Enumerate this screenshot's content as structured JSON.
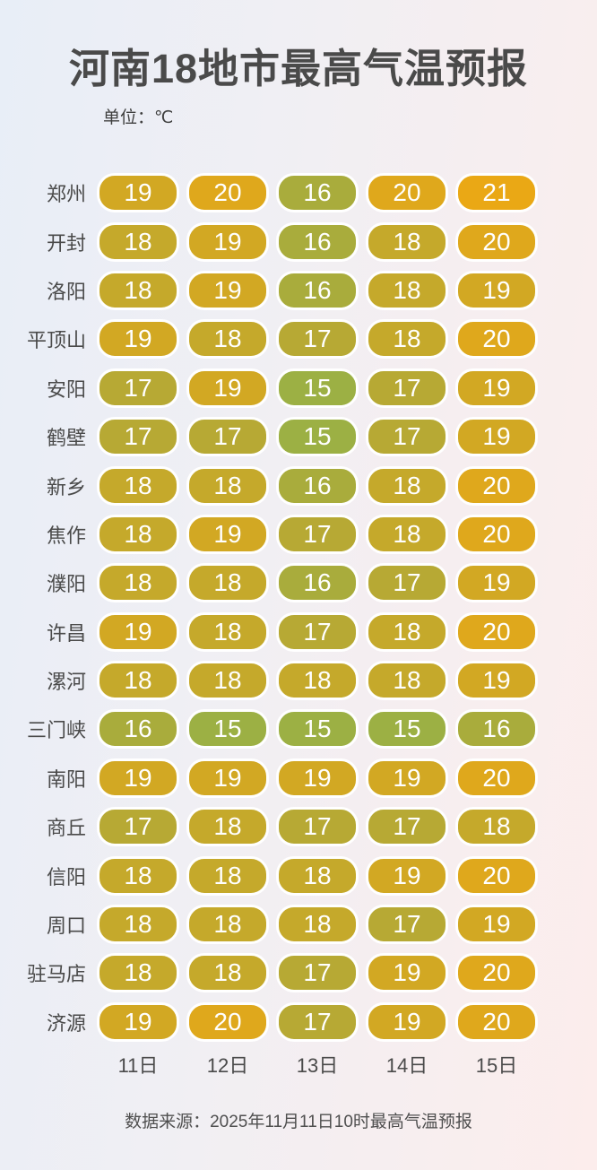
{
  "title": "河南18地市最高气温预报",
  "unit_label": "单位：℃",
  "footer": "数据来源：2025年11月11日10时最高气温预报",
  "chart_data": {
    "type": "heatmap",
    "title": "河南18地市最高气温预报",
    "unit": "℃",
    "x": [
      "11日",
      "12日",
      "13日",
      "14日",
      "15日"
    ],
    "rows": [
      {
        "name": "郑州",
        "values": [
          19,
          20,
          16,
          20,
          21
        ]
      },
      {
        "name": "开封",
        "values": [
          18,
          19,
          16,
          18,
          20
        ]
      },
      {
        "name": "洛阳",
        "values": [
          18,
          19,
          16,
          18,
          19
        ]
      },
      {
        "name": "平顶山",
        "values": [
          19,
          18,
          17,
          18,
          20
        ]
      },
      {
        "name": "安阳",
        "values": [
          17,
          19,
          15,
          17,
          19
        ]
      },
      {
        "name": "鹤壁",
        "values": [
          17,
          17,
          15,
          17,
          19
        ]
      },
      {
        "name": "新乡",
        "values": [
          18,
          18,
          16,
          18,
          20
        ]
      },
      {
        "name": "焦作",
        "values": [
          18,
          19,
          17,
          18,
          20
        ]
      },
      {
        "name": "濮阳",
        "values": [
          18,
          18,
          16,
          17,
          19
        ]
      },
      {
        "name": "许昌",
        "values": [
          19,
          18,
          17,
          18,
          20
        ]
      },
      {
        "name": "漯河",
        "values": [
          18,
          18,
          18,
          18,
          19
        ]
      },
      {
        "name": "三门峡",
        "values": [
          16,
          15,
          15,
          15,
          16
        ]
      },
      {
        "name": "南阳",
        "values": [
          19,
          19,
          19,
          19,
          20
        ]
      },
      {
        "name": "商丘",
        "values": [
          17,
          18,
          17,
          17,
          18
        ]
      },
      {
        "name": "信阳",
        "values": [
          18,
          18,
          18,
          19,
          20
        ]
      },
      {
        "name": "周口",
        "values": [
          18,
          18,
          18,
          17,
          19
        ]
      },
      {
        "name": "驻马店",
        "values": [
          18,
          18,
          17,
          19,
          20
        ]
      },
      {
        "name": "济源",
        "values": [
          19,
          20,
          17,
          19,
          20
        ]
      }
    ],
    "color_scale": {
      "15": "#9cb044",
      "16": "#a9ac3c",
      "17": "#b7a934",
      "18": "#c5a92b",
      "19": "#d2a823",
      "20": "#dfa81c",
      "21": "#eaa815"
    },
    "source": "2025年11月11日10时最高气温预报",
    "legend_position": "none",
    "grid": false
  }
}
